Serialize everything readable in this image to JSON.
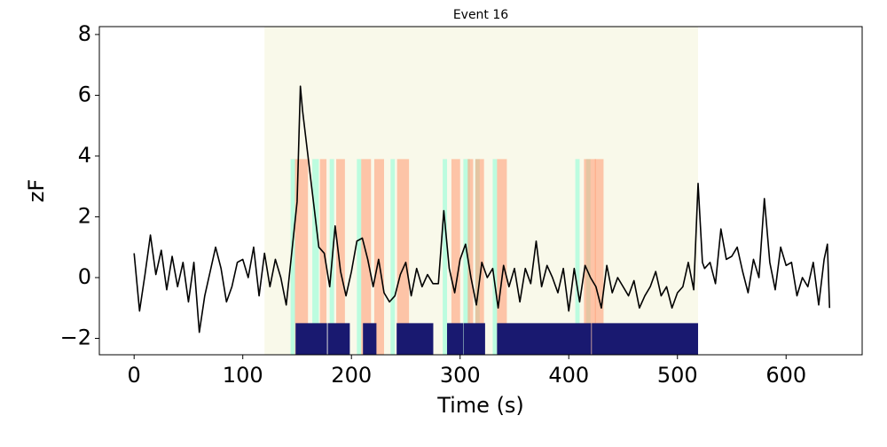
{
  "chart_data": {
    "type": "line",
    "title": "Event 16",
    "x_label": "Time (s)",
    "y_label": "zF",
    "xlim": [
      -32,
      670
    ],
    "ylim": [
      -2.54,
      8.26
    ],
    "xticks": [
      0,
      100,
      200,
      300,
      400,
      500,
      600
    ],
    "yticks": [
      {
        "value": -2,
        "label": "−2"
      },
      0,
      2,
      4,
      6,
      8
    ],
    "x": [
      0,
      5,
      10,
      15,
      20,
      25,
      30,
      35,
      40,
      45,
      50,
      55,
      60,
      65,
      70,
      75,
      80,
      85,
      90,
      95,
      100,
      105,
      110,
      115,
      120,
      125,
      130,
      135,
      140,
      145,
      150,
      153,
      155,
      160,
      165,
      170,
      175,
      180,
      185,
      190,
      195,
      200,
      205,
      210,
      215,
      220,
      225,
      230,
      235,
      240,
      245,
      250,
      255,
      260,
      265,
      270,
      275,
      280,
      285,
      290,
      295,
      300,
      305,
      310,
      315,
      320,
      325,
      330,
      335,
      340,
      345,
      350,
      355,
      360,
      365,
      370,
      375,
      380,
      385,
      390,
      395,
      400,
      405,
      410,
      415,
      420,
      425,
      430,
      435,
      440,
      445,
      450,
      455,
      460,
      465,
      470,
      475,
      480,
      485,
      490,
      495,
      500,
      505,
      510,
      515,
      519,
      523,
      525,
      530,
      535,
      540,
      545,
      550,
      555,
      560,
      565,
      570,
      575,
      580,
      585,
      590,
      595,
      600,
      605,
      610,
      615,
      620,
      625,
      630,
      635,
      638,
      640
    ],
    "series": [
      {
        "color": "#000000",
        "values": [
          0.8,
          -1.1,
          0.1,
          1.4,
          0.1,
          0.9,
          -0.4,
          0.7,
          -0.3,
          0.5,
          -0.8,
          0.5,
          -1.8,
          -0.6,
          0.2,
          1.0,
          0.3,
          -0.8,
          -0.3,
          0.5,
          0.6,
          0.0,
          1.0,
          -0.6,
          0.8,
          -0.3,
          0.6,
          0.0,
          -0.9,
          0.8,
          2.5,
          6.3,
          5.5,
          4.0,
          2.5,
          1.0,
          0.8,
          -0.3,
          1.7,
          0.2,
          -0.6,
          0.2,
          1.2,
          1.3,
          0.6,
          -0.3,
          0.6,
          -0.5,
          -0.8,
          -0.6,
          0.1,
          0.5,
          -0.6,
          0.3,
          -0.3,
          0.1,
          -0.2,
          -0.2,
          2.2,
          0.3,
          -0.5,
          0.6,
          1.1,
          0.0,
          -0.9,
          0.5,
          0.0,
          0.3,
          -1.0,
          0.4,
          -0.3,
          0.3,
          -0.8,
          0.3,
          -0.2,
          1.2,
          -0.3,
          0.4,
          0.0,
          -0.5,
          0.3,
          -1.1,
          0.3,
          -0.8,
          0.4,
          0.0,
          -0.3,
          -1.0,
          0.4,
          -0.5,
          0.0,
          -0.3,
          -0.6,
          -0.1,
          -1.0,
          -0.6,
          -0.3,
          0.2,
          -0.6,
          -0.3,
          -1.0,
          -0.5,
          -0.3,
          0.5,
          -0.4,
          3.1,
          0.5,
          0.3,
          0.5,
          -0.2,
          1.6,
          0.6,
          0.7,
          1.0,
          0.2,
          -0.5,
          0.6,
          0.0,
          2.6,
          0.5,
          -0.4,
          1.0,
          0.4,
          0.5,
          -0.6,
          0.0,
          -0.3,
          0.5,
          -0.9,
          0.6,
          1.1,
          -1.0
        ]
      }
    ],
    "bands": [
      {
        "color": "#f5f5dc",
        "alpha": 0.6,
        "ranges": [
          [
            120,
            519
          ]
        ]
      },
      {
        "color": "#7fffd4",
        "alpha": 0.5,
        "y_range": [
          -2.54,
          3.9
        ],
        "ranges": [
          [
            144,
            148
          ],
          [
            164,
            170
          ],
          [
            180,
            184
          ],
          [
            205,
            209
          ],
          [
            236,
            240
          ],
          [
            284,
            288
          ],
          [
            303,
            309
          ],
          [
            314,
            318
          ],
          [
            330,
            334
          ],
          [
            406,
            410
          ],
          [
            416,
            420
          ]
        ]
      },
      {
        "color": "#ffa07a",
        "alpha": 0.6,
        "y_range": [
          -2.54,
          3.9
        ],
        "ranges": [
          [
            148,
            160
          ],
          [
            171,
            177
          ],
          [
            186,
            194
          ],
          [
            209,
            218
          ],
          [
            221,
            230
          ],
          [
            242,
            253
          ],
          [
            292,
            300
          ],
          [
            307,
            312
          ],
          [
            314,
            322
          ],
          [
            334,
            343
          ],
          [
            414,
            425
          ],
          [
            424,
            432
          ]
        ]
      },
      {
        "color": "#191970",
        "alpha": 1,
        "y_range": [
          -2.54,
          -1.5
        ],
        "ranges": [
          [
            148.6,
            177.5
          ],
          [
            178.2,
            198.5
          ],
          [
            210.6,
            223
          ],
          [
            241.6,
            275.3
          ],
          [
            288,
            303
          ],
          [
            303.4,
            323
          ],
          [
            334,
            420.6
          ],
          [
            421.2,
            519
          ]
        ]
      }
    ]
  }
}
